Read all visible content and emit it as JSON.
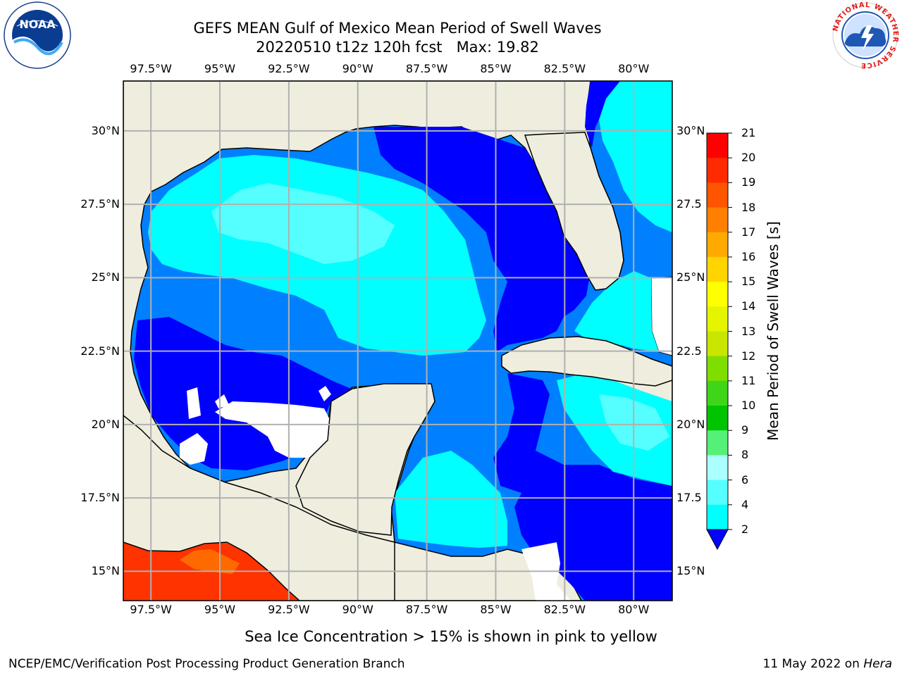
{
  "header": {
    "title_line1": "GEFS MEAN Gulf of Mexico Mean Period of Swell Waves",
    "title_line2": "20220510 t12z 120h fcst   Max: 19.82"
  },
  "logos": {
    "left": "noaa-logo",
    "right": "national-weather-service-logo",
    "noaa_text": "NOAA",
    "nws_ring_text": "NATIONAL WEATHER SERVICE"
  },
  "map": {
    "projection": "PlateCarree",
    "extent": {
      "lon": [
        -98.5,
        -78.6
      ],
      "lat": [
        14.0,
        31.7
      ]
    },
    "lon_ticks": [
      "97.5°W",
      "95°W",
      "92.5°W",
      "90°W",
      "87.5°W",
      "85°W",
      "82.5°W",
      "80°W"
    ],
    "lon_values": [
      -97.5,
      -95,
      -92.5,
      -90,
      -87.5,
      -85,
      -82.5,
      -80
    ],
    "lat_ticks": [
      "30°N",
      "27.5°N",
      "25°N",
      "22.5°N",
      "20°N",
      "17.5°N",
      "15°N"
    ],
    "lat_ticks_right": [
      "30°N",
      "27.5",
      "25°N",
      "22.5",
      "20°N",
      "17.5",
      "15°N"
    ],
    "lat_values": [
      30,
      27.5,
      25,
      22.5,
      20,
      17.5,
      15
    ],
    "gridlines": true,
    "land_color": "#efedde",
    "coastline_color": "#000000",
    "grid_color": "#b0b0b0"
  },
  "colorbar": {
    "label": "Mean Period of Swell Waves [s]",
    "placement": "right",
    "extend": "min",
    "levels": [
      "21",
      "20",
      "19",
      "18",
      "17",
      "16",
      "15",
      "14",
      "13",
      "12",
      "11",
      "10",
      "9",
      "8",
      "6",
      "4",
      "2"
    ],
    "colors": [
      "#ff0000",
      "#ff2a00",
      "#ff5500",
      "#ff7f00",
      "#ffaa00",
      "#ffd400",
      "#ffff00",
      "#e5f500",
      "#c8e600",
      "#7fdd00",
      "#3fd61a",
      "#00c400",
      "#55f077",
      "#aaffff",
      "#55ffff",
      "#00ffff",
      "#0080ff"
    ],
    "under_color": "#0000ff",
    "min": 2,
    "max": 21
  },
  "field_colors": {
    "lt2": "#0000ff",
    "p2_4": "#0080ff",
    "p4_6": "#00ffff",
    "p6_8": "#55ffff",
    "red_18_20": "#ff3300",
    "orange_17_19": "#ff6a00"
  },
  "footer": {
    "sea_ice_note": "Sea Ice Concentration > 15% is shown in pink to yellow",
    "credit": "NCEP/EMC/Verification Post Processing Product Generation Branch",
    "date": "11 May 2022 on ",
    "host": "Hera"
  }
}
